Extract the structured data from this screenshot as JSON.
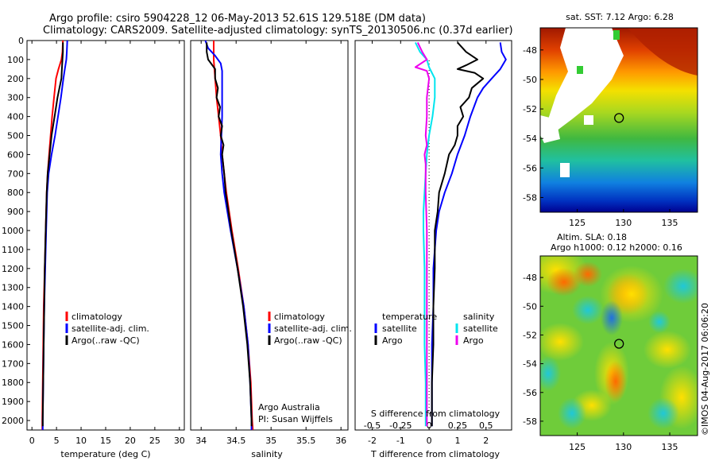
{
  "header": {
    "line1": "Argo profile: csiro 5904228_12 06-May-2013 52.61S 129.518E (DM data)",
    "line2": "Climatology: CARS2009. Satellite-adjusted climatology: synTS_20130506.nc (0.37d earlier)"
  },
  "colors": {
    "climatology": "#ff0000",
    "satellite": "#0000ff",
    "argo": "#000000",
    "sal_satellite": "#00e5ee",
    "sal_argo": "#ee00ee"
  },
  "legend": {
    "climatology": "climatology",
    "satellite": "satellite-adj. clim.",
    "argo": "Argo(..raw -QC)",
    "diff_temperature": "temperature",
    "diff_salinity": "salinity",
    "diff_satellite": "satellite",
    "diff_argo": "Argo"
  },
  "credits": {
    "line1": "Argo Australia",
    "line2": "PI: Susan Wijffels",
    "stamp": "©IMOS 04-Aug-2017 06:06:20"
  },
  "chart_data": [
    {
      "type": "line",
      "xlabel": "temperature (deg C)",
      "xlim": [
        -1,
        31
      ],
      "xticks": [
        0,
        5,
        10,
        15,
        20,
        25,
        30
      ],
      "ylim": [
        0,
        2050
      ],
      "yticks": [
        0,
        100,
        200,
        300,
        400,
        500,
        600,
        700,
        800,
        900,
        1000,
        1100,
        1200,
        1300,
        1400,
        1500,
        1600,
        1700,
        1800,
        1900,
        2000
      ],
      "series": [
        {
          "key": "climatology",
          "depth": [
            0,
            60,
            100,
            150,
            200,
            300,
            400,
            500,
            600,
            700,
            800,
            1000,
            1200,
            1400,
            1600,
            1800,
            2000,
            2050
          ],
          "values": [
            6.3,
            6.2,
            6.0,
            5.4,
            4.9,
            4.5,
            4.1,
            3.8,
            3.5,
            3.2,
            3.0,
            2.8,
            2.6,
            2.4,
            2.3,
            2.2,
            2.1,
            2.1
          ]
        },
        {
          "key": "satellite",
          "depth": [
            0,
            60,
            100,
            150,
            200,
            300,
            400,
            500,
            600,
            700,
            800,
            1000,
            1200,
            1400,
            1600,
            1800,
            2000,
            2050
          ],
          "values": [
            7.2,
            7.1,
            7.0,
            6.7,
            6.4,
            5.9,
            5.3,
            4.7,
            4.0,
            3.4,
            3.1,
            2.9,
            2.7,
            2.5,
            2.4,
            2.3,
            2.2,
            2.2
          ]
        },
        {
          "key": "argo",
          "depth": [
            10,
            60,
            100,
            150,
            200,
            250,
            300,
            400,
            500,
            600,
            700,
            800,
            1000,
            1200,
            1400,
            1600,
            1800,
            2000,
            2030
          ],
          "values": [
            6.3,
            6.3,
            6.2,
            6.1,
            6.0,
            5.6,
            5.2,
            4.6,
            4.0,
            3.6,
            3.2,
            3.0,
            2.8,
            2.6,
            2.5,
            2.4,
            2.3,
            2.2,
            2.2
          ]
        }
      ]
    },
    {
      "type": "line",
      "xlabel": "salinity",
      "xlim": [
        33.85,
        36.1
      ],
      "xticks": [
        34,
        34.5,
        35,
        35.5,
        36
      ],
      "xticklabels": [
        "34",
        "34.5",
        "35",
        "35.5",
        "36"
      ],
      "ylim": [
        0,
        2050
      ],
      "series": [
        {
          "key": "climatology",
          "depth": [
            0,
            100,
            150,
            200,
            300,
            400,
            500,
            600,
            700,
            800,
            900,
            1000,
            1200,
            1400,
            1600,
            1800,
            2000,
            2050
          ],
          "values": [
            34.18,
            34.18,
            34.19,
            34.2,
            34.22,
            34.25,
            34.28,
            34.3,
            34.33,
            34.36,
            34.4,
            34.44,
            34.53,
            34.61,
            34.67,
            34.71,
            34.73,
            34.74
          ]
        },
        {
          "key": "satellite",
          "depth": [
            0,
            40,
            80,
            120,
            160,
            200,
            300,
            400,
            500,
            600,
            700,
            800,
            1000,
            1200,
            1400,
            1600,
            1800,
            2000,
            2050
          ],
          "values": [
            34.06,
            34.1,
            34.2,
            34.28,
            34.3,
            34.3,
            34.3,
            34.3,
            34.29,
            34.28,
            34.3,
            34.33,
            34.42,
            34.52,
            34.61,
            34.67,
            34.7,
            34.72,
            34.72
          ]
        },
        {
          "key": "argo",
          "depth": [
            10,
            60,
            100,
            150,
            200,
            250,
            300,
            350,
            400,
            450,
            500,
            550,
            600,
            700,
            800,
            1000,
            1200,
            1400,
            1600,
            1800,
            2000,
            2030
          ],
          "values": [
            34.08,
            34.08,
            34.1,
            34.2,
            34.2,
            34.24,
            34.22,
            34.27,
            34.25,
            34.3,
            34.28,
            34.32,
            34.3,
            34.33,
            34.35,
            34.43,
            34.52,
            34.6,
            34.66,
            34.7,
            34.72,
            34.72
          ]
        }
      ]
    },
    {
      "type": "line",
      "xlabel": "T difference from climatology",
      "xlabel_top": "S difference from climatology",
      "xlim": [
        -2.6,
        2.9
      ],
      "xticks": [
        -2,
        -1,
        0,
        1,
        2
      ],
      "xticks_top": [
        -0.5,
        -0.25,
        0,
        0.25,
        0.5
      ],
      "ylim": [
        0,
        2050
      ],
      "series": [
        {
          "key": "temp_satellite",
          "depth": [
            10,
            60,
            100,
            150,
            200,
            250,
            300,
            400,
            500,
            600,
            700,
            800,
            900,
            1000,
            1200,
            1400,
            1600,
            1800,
            2000,
            2030
          ],
          "values": [
            2.5,
            2.55,
            2.7,
            2.5,
            2.2,
            1.9,
            1.7,
            1.45,
            1.25,
            1.0,
            0.8,
            0.55,
            0.35,
            0.25,
            0.15,
            0.15,
            0.1,
            0.1,
            0.1,
            0.1
          ]
        },
        {
          "key": "temp_argo",
          "depth": [
            10,
            60,
            100,
            130,
            150,
            170,
            200,
            250,
            300,
            350,
            400,
            450,
            500,
            550,
            600,
            700,
            800,
            900,
            1000,
            1200,
            1400,
            1600,
            1800,
            2000,
            2030
          ],
          "values": [
            1.0,
            1.3,
            1.7,
            1.3,
            1.0,
            1.6,
            1.9,
            1.5,
            1.4,
            1.1,
            1.2,
            1.0,
            1.0,
            0.9,
            0.7,
            0.55,
            0.35,
            0.3,
            0.2,
            0.2,
            0.15,
            0.15,
            0.1,
            0.1,
            0.1
          ]
        },
        {
          "key": "sal_satellite",
          "depth": [
            10,
            60,
            100,
            140,
            200,
            300,
            400,
            500,
            600,
            700,
            800,
            900,
            1000,
            1200,
            1400,
            1600,
            1800,
            2000,
            2030
          ],
          "values": [
            -0.12,
            -0.08,
            -0.02,
            0.0,
            0.05,
            0.05,
            0.03,
            0.0,
            -0.02,
            -0.03,
            -0.04,
            -0.05,
            -0.05,
            -0.04,
            -0.04,
            -0.04,
            -0.03,
            -0.03,
            -0.03
          ]
        },
        {
          "key": "sal_argo",
          "depth": [
            10,
            60,
            100,
            140,
            160,
            200,
            300,
            400,
            500,
            550,
            600,
            650,
            700,
            800,
            1000,
            1200,
            1400,
            1600,
            1800,
            2000,
            2030
          ],
          "values": [
            -0.1,
            -0.06,
            -0.02,
            -0.12,
            -0.02,
            0.0,
            -0.02,
            -0.02,
            -0.03,
            -0.02,
            -0.04,
            -0.03,
            -0.03,
            -0.03,
            -0.02,
            -0.02,
            -0.02,
            -0.02,
            -0.02,
            -0.02,
            -0.02
          ]
        }
      ]
    },
    {
      "type": "heatmap",
      "title": "sat. SST: 7.12  Argo: 6.28",
      "xlim": [
        121,
        138
      ],
      "ylim": [
        -59,
        -46.5
      ],
      "xticks": [
        125,
        130,
        135
      ],
      "yticks": [
        -48,
        -50,
        -52,
        -54,
        -56,
        -58
      ],
      "marker": [
        129.518,
        -52.61
      ]
    },
    {
      "type": "heatmap",
      "title_line1": "Altim. SLA: 0.18",
      "title_line2": "Argo h1000: 0.12 h2000: 0.16",
      "xlim": [
        121,
        138
      ],
      "ylim": [
        -59,
        -46.5
      ],
      "xticks": [
        125,
        130,
        135
      ],
      "yticks": [
        -48,
        -50,
        -52,
        -54,
        -56,
        -58
      ],
      "marker": [
        129.518,
        -52.61
      ]
    }
  ]
}
